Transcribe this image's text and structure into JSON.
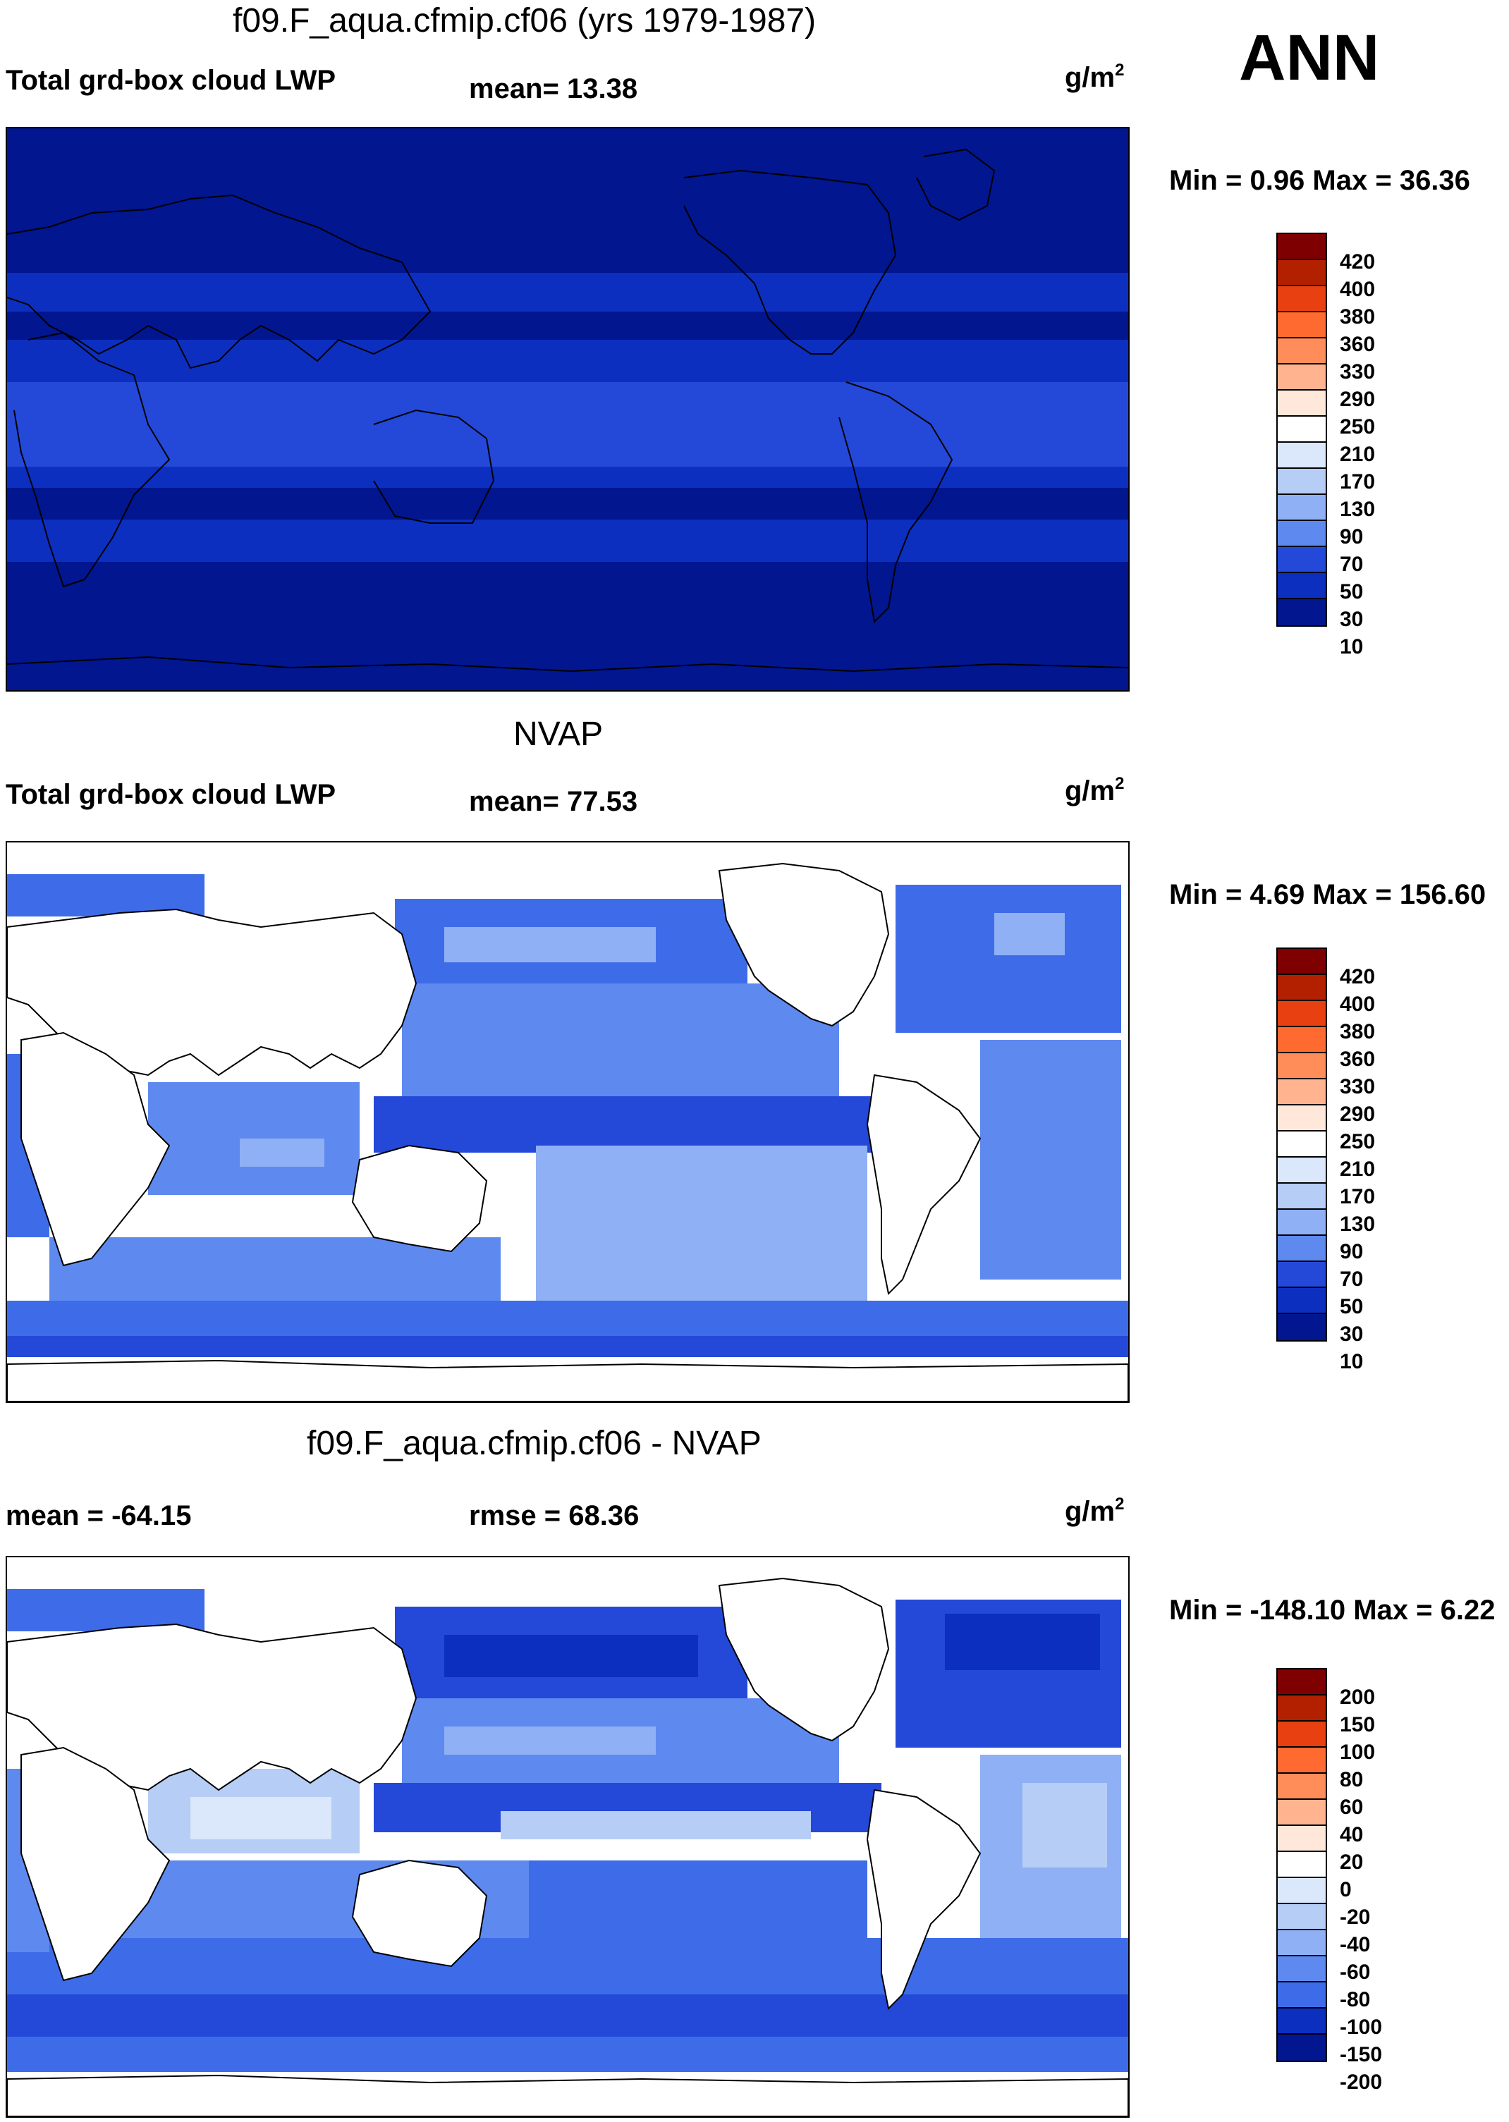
{
  "season": "ANN",
  "panels": [
    {
      "title": "f09.F_aqua.cfmip.cf06 (yrs 1979-1987)",
      "left": "Total grd-box cloud LWP",
      "center": "mean=  13.38",
      "units_base": "g/m",
      "units_exp": "2",
      "minmax": "Min =   0.96 Max =  36.36",
      "cbar_labels": [
        "420",
        "400",
        "380",
        "360",
        "330",
        "290",
        "250",
        "210",
        "170",
        "130",
        "90",
        "70",
        "50",
        "30",
        "10"
      ]
    },
    {
      "title": "NVAP",
      "left": "Total grd-box cloud LWP",
      "center": "mean=  77.53",
      "units_base": "g/m",
      "units_exp": "2",
      "minmax": "Min =   4.69 Max = 156.60",
      "cbar_labels": [
        "420",
        "400",
        "380",
        "360",
        "330",
        "290",
        "250",
        "210",
        "170",
        "130",
        "90",
        "70",
        "50",
        "30",
        "10"
      ]
    },
    {
      "title": "f09.F_aqua.cfmip.cf06 - NVAP",
      "left": "mean = -64.15",
      "center": "rmse =  68.36",
      "units_base": "g/m",
      "units_exp": "2",
      "minmax": "Min = -148.10 Max =   6.22",
      "cbar_labels": [
        "200",
        "150",
        "100",
        "80",
        "60",
        "40",
        "20",
        "0",
        "-20",
        "-40",
        "-60",
        "-80",
        "-100",
        "-150",
        "-200"
      ]
    }
  ],
  "colors": {
    "abs_scale": [
      "#7f0000",
      "#b32000",
      "#e84010",
      "#ff6a30",
      "#ff8d5a",
      "#ffb48f",
      "#ffe8da",
      "#dbe7fb",
      "#b6cdf6",
      "#8fb0f4",
      "#5e8af0",
      "#3e6ce8",
      "#2449d8",
      "#0d2fc0",
      "#01168f"
    ],
    "diff_scale": [
      "#7f0000",
      "#b32000",
      "#e84010",
      "#ff6a30",
      "#ff8d5a",
      "#ffb48f",
      "#ffe8da",
      "#ffffff",
      "#dbe7fb",
      "#b6cdf6",
      "#8fb0f4",
      "#5e8af0",
      "#3e6ce8",
      "#0d2fc0",
      "#01168f"
    ]
  }
}
